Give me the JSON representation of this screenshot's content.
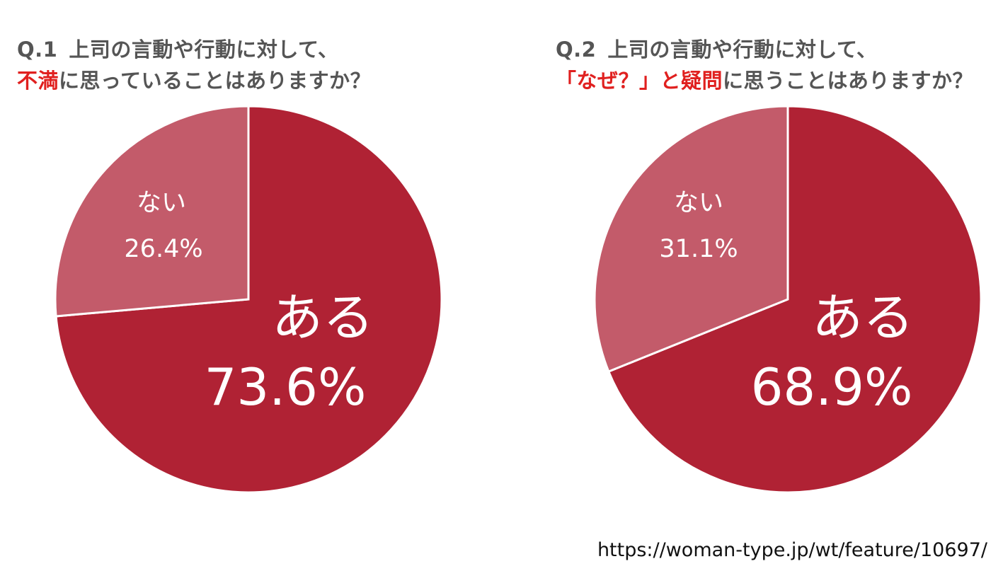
{
  "colors": {
    "yes": "#b02234",
    "no": "#c35b6a",
    "highlight": "#e0201f",
    "title": "#555555"
  },
  "chart_data": [
    {
      "type": "pie",
      "title_q": "Q.1",
      "title_line1": "上司の言動や行動に対して、",
      "title_line2_highlight": "不満",
      "title_line2_rest": "に思っていることはありますか？",
      "slices": [
        {
          "label": "ある",
          "value": 73.6,
          "value_text": "73.6%"
        },
        {
          "label": "ない",
          "value": 26.4,
          "value_text": "26.4%"
        }
      ]
    },
    {
      "type": "pie",
      "title_q": "Q.2",
      "title_line1": "上司の言動や行動に対して、",
      "title_line2_highlight": "「なぜ？」と疑問",
      "title_line2_rest": "に思うことはありますか？",
      "slices": [
        {
          "label": "ある",
          "value": 68.9,
          "value_text": "68.9%"
        },
        {
          "label": "ない",
          "value": 31.1,
          "value_text": "31.1%"
        }
      ]
    }
  ],
  "source": "https://woman-type.jp/wt/feature/10697/"
}
